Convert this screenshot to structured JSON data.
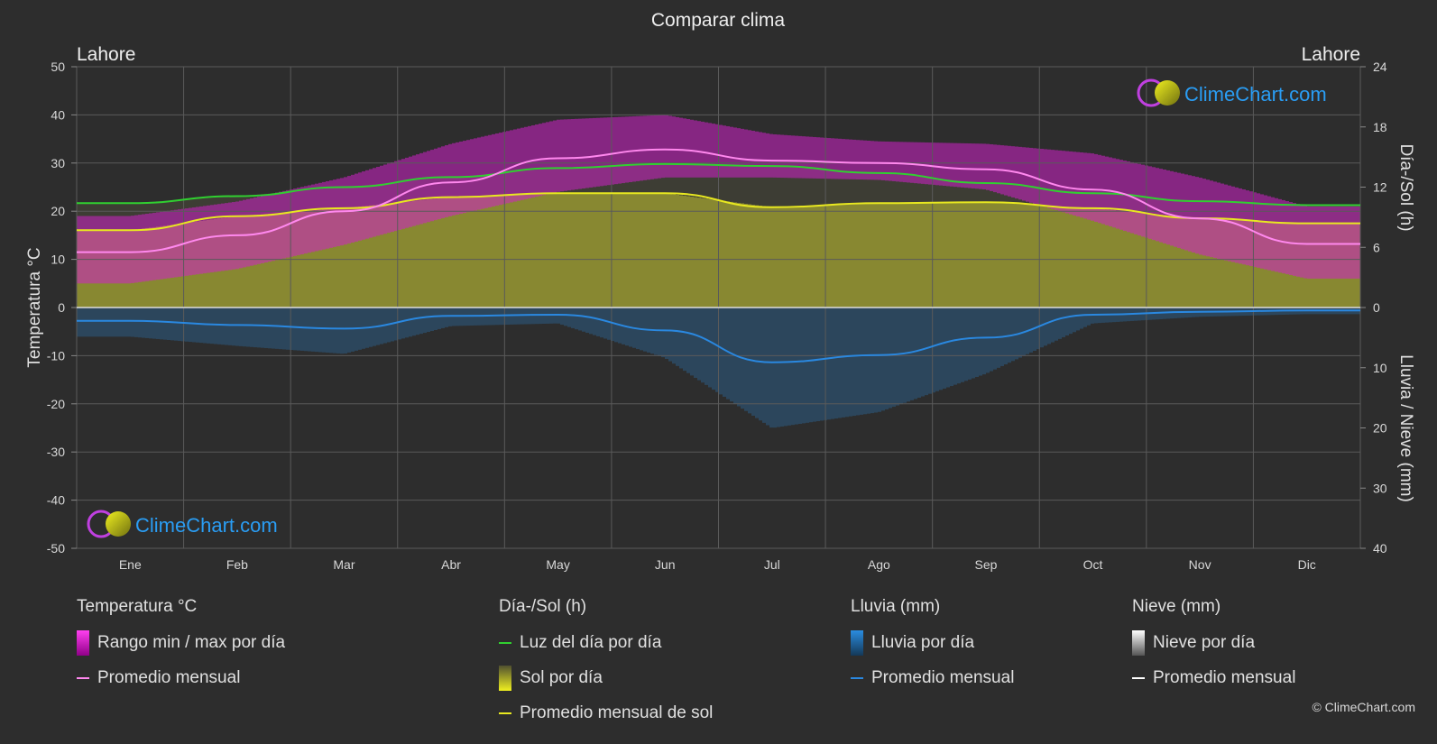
{
  "title": "Comparar clima",
  "location_left": "Lahore",
  "location_right": "Lahore",
  "watermark": "ClimeChart.com",
  "copyright": "© ClimeChart.com",
  "colors": {
    "background": "#2d2d2d",
    "temp_range": "#d020c8",
    "temp_avg": "#ff88ee",
    "daylight": "#30d030",
    "sunshine": "#b8b830",
    "sun_avg": "#e8e820",
    "rain": "#2a88d8",
    "rain_avg": "#2a88e0",
    "snow": "#cccccc",
    "snow_avg": "#ffffff",
    "brand_blue": "#2a9df4"
  },
  "legend": {
    "temperature": {
      "title": "Temperatura °C",
      "items": [
        {
          "label": "Rango min / max por día",
          "kind": "box",
          "color": "#d020c8"
        },
        {
          "label": "Promedio mensual",
          "kind": "line",
          "color": "#ff88ee"
        }
      ]
    },
    "sun": {
      "title": "Día-/Sol (h)",
      "items": [
        {
          "label": "Luz del día por día",
          "kind": "line",
          "color": "#30d030"
        },
        {
          "label": "Sol por día",
          "kind": "box",
          "color": "#c8c830"
        },
        {
          "label": "Promedio mensual de sol",
          "kind": "line",
          "color": "#e8e820"
        }
      ]
    },
    "rain": {
      "title": "Lluvia (mm)",
      "items": [
        {
          "label": "Lluvia por día",
          "kind": "box",
          "color": "#2a88d8"
        },
        {
          "label": "Promedio mensual",
          "kind": "line",
          "color": "#2a88e0"
        }
      ]
    },
    "snow": {
      "title": "Nieve (mm)",
      "items": [
        {
          "label": "Nieve por día",
          "kind": "box",
          "color": "#cccccc"
        },
        {
          "label": "Promedio mensual",
          "kind": "line",
          "color": "#ffffff"
        }
      ]
    }
  },
  "chart_data": {
    "type": "line",
    "title": "Comparar clima",
    "categories": [
      "Ene",
      "Feb",
      "Mar",
      "Abr",
      "May",
      "Jun",
      "Jul",
      "Ago",
      "Sep",
      "Oct",
      "Nov",
      "Dic"
    ],
    "y_left": {
      "label": "Temperatura °C",
      "min": -50,
      "max": 50,
      "ticks": [
        50,
        40,
        30,
        20,
        10,
        0,
        -10,
        -20,
        -30,
        -40,
        -50
      ]
    },
    "y_right_top": {
      "label": "Día-/Sol (h)",
      "min": 0,
      "max": 24,
      "ticks": [
        24,
        18,
        12,
        6,
        0
      ]
    },
    "y_right_bottom": {
      "label": "Lluvia / Nieve (mm)",
      "min": 0,
      "max": 40,
      "ticks": [
        0,
        10,
        20,
        30,
        40
      ]
    },
    "grid": true,
    "series": [
      {
        "name": "Promedio mensual",
        "axis": "temperature_c",
        "values": [
          11.5,
          15,
          20,
          26,
          31,
          32.8,
          30.5,
          30,
          28.7,
          24.5,
          18.5,
          13.2
        ]
      },
      {
        "name": "Rango min / max por día (min)",
        "axis": "temperature_c",
        "values": [
          5,
          8,
          13,
          19,
          24,
          27,
          27,
          26.5,
          24.5,
          18,
          11,
          6
        ]
      },
      {
        "name": "Rango min / max por día (max)",
        "axis": "temperature_c",
        "values": [
          19,
          22,
          27,
          34,
          39,
          40,
          36,
          34.5,
          34,
          32,
          27,
          21
        ]
      },
      {
        "name": "Luz del día por día",
        "axis": "hours",
        "values": [
          10.4,
          11.1,
          12.0,
          13.0,
          13.9,
          14.3,
          14.1,
          13.4,
          12.4,
          11.4,
          10.6,
          10.2
        ]
      },
      {
        "name": "Promedio mensual de sol",
        "axis": "hours",
        "values": [
          7.7,
          9.1,
          9.9,
          11.0,
          11.4,
          11.4,
          10.0,
          10.4,
          10.5,
          9.9,
          8.9,
          8.4
        ]
      },
      {
        "name": "Lluvia (Promedio mensual)",
        "axis": "rain_mm",
        "values": [
          2.2,
          2.9,
          3.5,
          1.4,
          1.2,
          3.8,
          9.1,
          7.9,
          5.0,
          1.2,
          0.7,
          0.5
        ]
      },
      {
        "name": "Nieve (Promedio mensual)",
        "axis": "snow_mm",
        "values": [
          0,
          0,
          0,
          0,
          0,
          0,
          0,
          0,
          0,
          0,
          0,
          0
        ]
      }
    ]
  }
}
